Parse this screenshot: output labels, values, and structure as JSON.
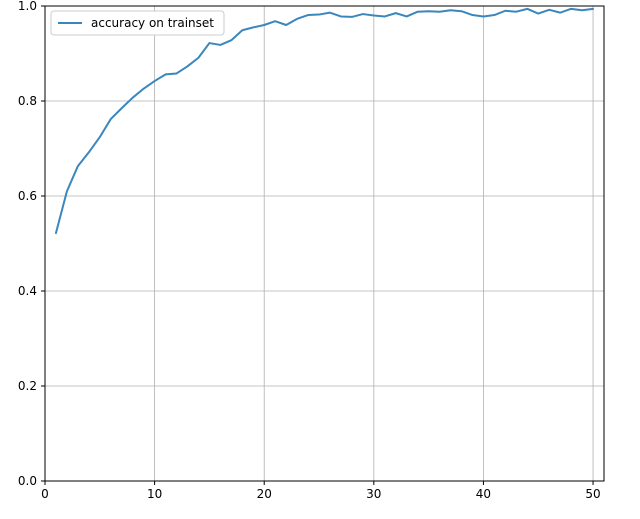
{
  "chart_data": {
    "type": "line",
    "title": "",
    "xlabel": "",
    "ylabel": "",
    "xlim": [
      0,
      51
    ],
    "ylim": [
      0.0,
      1.0
    ],
    "x_ticks": [
      0,
      10,
      20,
      30,
      40,
      50
    ],
    "x_tick_labels": [
      "0",
      "10",
      "20",
      "30",
      "40",
      "50"
    ],
    "y_ticks": [
      0.0,
      0.2,
      0.4,
      0.6,
      0.8,
      1.0
    ],
    "y_tick_labels": [
      "0.0",
      "0.2",
      "0.4",
      "0.6",
      "0.8",
      "1.0"
    ],
    "grid": true,
    "legend_position": "top-left",
    "series": [
      {
        "name": "accuracy on trainset",
        "color": "#3a87bd",
        "x": [
          1,
          2,
          3,
          4,
          5,
          6,
          7,
          8,
          9,
          10,
          11,
          12,
          13,
          14,
          15,
          16,
          17,
          18,
          19,
          20,
          21,
          22,
          23,
          24,
          25,
          26,
          27,
          28,
          29,
          30,
          31,
          32,
          33,
          34,
          35,
          36,
          37,
          38,
          39,
          40,
          41,
          42,
          43,
          44,
          45,
          46,
          47,
          48,
          49,
          50
        ],
        "values": [
          0.522,
          0.61,
          0.663,
          0.692,
          0.724,
          0.762,
          0.785,
          0.807,
          0.826,
          0.842,
          0.856,
          0.858,
          0.873,
          0.891,
          0.922,
          0.918,
          0.928,
          0.949,
          0.955,
          0.96,
          0.968,
          0.96,
          0.973,
          0.981,
          0.982,
          0.986,
          0.978,
          0.977,
          0.983,
          0.98,
          0.978,
          0.985,
          0.978,
          0.988,
          0.989,
          0.988,
          0.991,
          0.989,
          0.981,
          0.978,
          0.981,
          0.99,
          0.988,
          0.994,
          0.984,
          0.992,
          0.986,
          0.994,
          0.991,
          0.994
        ]
      }
    ]
  }
}
